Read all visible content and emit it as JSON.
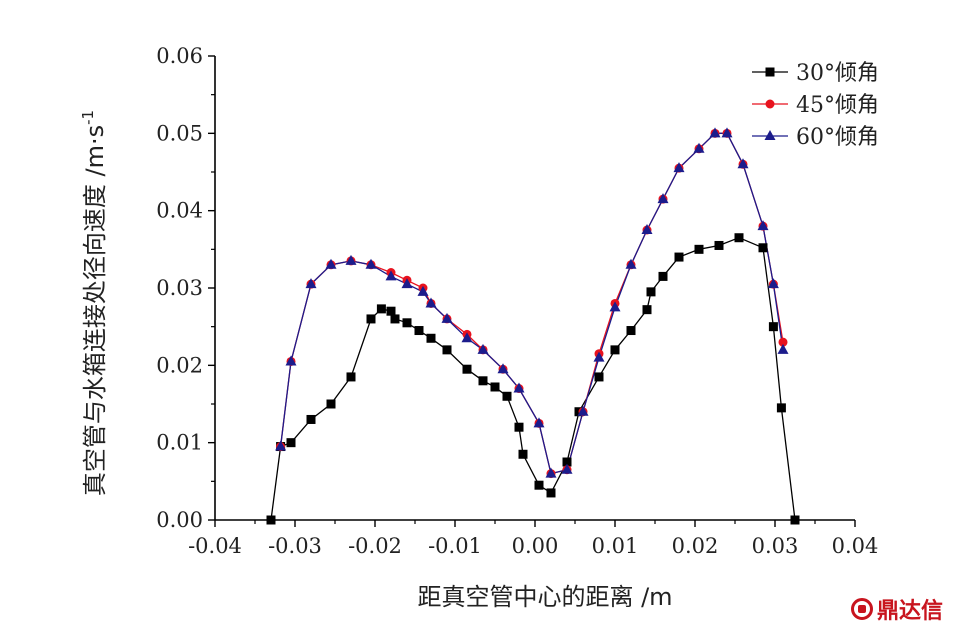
{
  "chart_data": {
    "type": "line",
    "xlabel": "距真空管中心的距离 /m",
    "ylabel": "真空管与水箱连接处径向速度 /m·s",
    "ylabel_sup": "-1",
    "xlim": [
      -0.04,
      0.04
    ],
    "ylim": [
      0.0,
      0.06
    ],
    "xticks": [
      "-0.04",
      "-0.03",
      "-0.02",
      "-0.01",
      "0.00",
      "0.01",
      "0.02",
      "0.03",
      "0.04"
    ],
    "yticks": [
      "0.00",
      "0.01",
      "0.02",
      "0.03",
      "0.04",
      "0.05",
      "0.06"
    ],
    "grid": false,
    "legend_position": "top-right",
    "series": [
      {
        "name": "30°倾角",
        "color": "#000000",
        "marker": "square",
        "x": [
          -0.033,
          -0.0318,
          -0.0305,
          -0.028,
          -0.0255,
          -0.023,
          -0.0205,
          -0.0192,
          -0.018,
          -0.0175,
          -0.016,
          -0.0145,
          -0.013,
          -0.011,
          -0.0085,
          -0.0065,
          -0.005,
          -0.0035,
          -0.002,
          -0.0015,
          0.0005,
          0.002,
          0.004,
          0.0055,
          0.008,
          0.01,
          0.012,
          0.014,
          0.0145,
          0.016,
          0.018,
          0.0205,
          0.023,
          0.0255,
          0.0285,
          0.0298,
          0.0308,
          0.0325
        ],
        "y": [
          0.0,
          0.0095,
          0.01,
          0.013,
          0.015,
          0.0185,
          0.026,
          0.0273,
          0.027,
          0.026,
          0.0255,
          0.0245,
          0.0235,
          0.022,
          0.0195,
          0.018,
          0.0172,
          0.016,
          0.012,
          0.0085,
          0.0045,
          0.0035,
          0.0075,
          0.014,
          0.0185,
          0.022,
          0.0245,
          0.0272,
          0.0295,
          0.0315,
          0.034,
          0.035,
          0.0355,
          0.0365,
          0.0352,
          0.025,
          0.0145,
          0.0
        ]
      },
      {
        "name": "45°倾角",
        "color": "#e8121e",
        "marker": "circle",
        "x": [
          -0.0318,
          -0.0305,
          -0.028,
          -0.0255,
          -0.023,
          -0.0205,
          -0.018,
          -0.016,
          -0.014,
          -0.013,
          -0.011,
          -0.0085,
          -0.0065,
          -0.004,
          -0.002,
          0.0005,
          0.002,
          0.004,
          0.006,
          0.008,
          0.01,
          0.012,
          0.014,
          0.016,
          0.018,
          0.0205,
          0.0225,
          0.024,
          0.026,
          0.0285,
          0.0298,
          0.031
        ],
        "y": [
          0.0095,
          0.0205,
          0.0305,
          0.033,
          0.0335,
          0.033,
          0.032,
          0.031,
          0.03,
          0.028,
          0.026,
          0.024,
          0.022,
          0.0195,
          0.017,
          0.0125,
          0.006,
          0.0065,
          0.014,
          0.0215,
          0.028,
          0.033,
          0.0375,
          0.0415,
          0.0455,
          0.048,
          0.05,
          0.05,
          0.046,
          0.038,
          0.0305,
          0.023
        ]
      },
      {
        "name": "60°倾角",
        "color": "#1c1c8c",
        "marker": "triangle",
        "x": [
          -0.0318,
          -0.0305,
          -0.028,
          -0.0255,
          -0.023,
          -0.0205,
          -0.018,
          -0.016,
          -0.014,
          -0.013,
          -0.011,
          -0.0085,
          -0.0065,
          -0.004,
          -0.002,
          0.0005,
          0.002,
          0.004,
          0.006,
          0.008,
          0.01,
          0.012,
          0.014,
          0.016,
          0.018,
          0.0205,
          0.0225,
          0.024,
          0.026,
          0.0285,
          0.0298,
          0.031
        ],
        "y": [
          0.0095,
          0.0205,
          0.0305,
          0.033,
          0.0335,
          0.033,
          0.0315,
          0.0305,
          0.0295,
          0.028,
          0.026,
          0.0235,
          0.022,
          0.0195,
          0.017,
          0.0125,
          0.006,
          0.0065,
          0.014,
          0.021,
          0.0275,
          0.033,
          0.0375,
          0.0415,
          0.0455,
          0.048,
          0.05,
          0.05,
          0.046,
          0.038,
          0.0305,
          0.022
        ]
      }
    ]
  },
  "watermark": {
    "text": "鼎达信"
  }
}
